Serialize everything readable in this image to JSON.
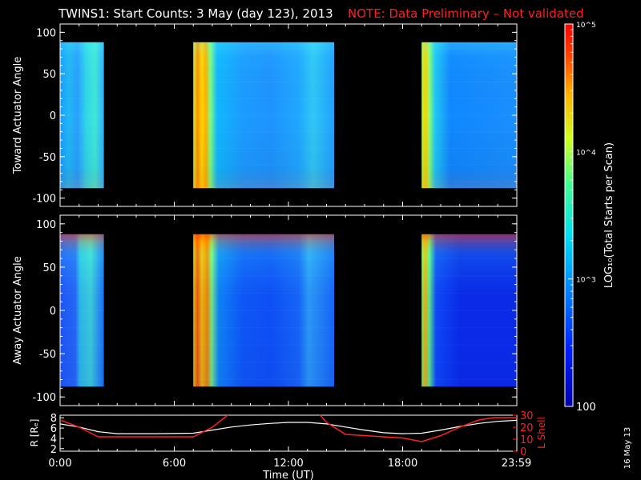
{
  "header": {
    "title": "TWINS1: Start Counts:  3 May (day 123), 2013",
    "note": "NOTE: Data Preliminary – Not validated"
  },
  "colors": {
    "background": "#000000",
    "axis": "#ffffff",
    "accent_red": "#ff2020"
  },
  "colorbar": {
    "label": "LOG₁₀(Total Starts per Scan)",
    "tick_labels": [
      "10^5",
      "10^4",
      "10^3",
      "100"
    ],
    "range": [
      100,
      100000
    ],
    "scale": "log"
  },
  "stamp": "16 May 13",
  "chart_data": [
    {
      "type": "heatmap",
      "panel": "toward",
      "ylabel": "Toward Actuator Angle",
      "ylim": [
        -110,
        110
      ],
      "y_ticks": [
        "100",
        "50",
        "0",
        "-50",
        "-100"
      ],
      "xlim_hours": [
        0,
        24
      ],
      "data_intervals_hours": [
        [
          0.0,
          2.3
        ],
        [
          7.0,
          14.4
        ],
        [
          19.0,
          24.0
        ]
      ],
      "angle_range": [
        -88,
        88
      ]
    },
    {
      "type": "heatmap",
      "panel": "away",
      "ylabel": "Away Actuator Angle",
      "ylim": [
        -110,
        110
      ],
      "y_ticks": [
        "100",
        "50",
        "0",
        "-50",
        "-100"
      ],
      "xlim_hours": [
        0,
        24
      ],
      "data_intervals_hours": [
        [
          0.0,
          2.3
        ],
        [
          7.0,
          14.4
        ],
        [
          19.0,
          24.0
        ]
      ],
      "angle_range": [
        -88,
        88
      ]
    },
    {
      "type": "line",
      "panel": "orbit",
      "ylabel_left": "R [Rₑ]",
      "ylabel_right": "L Shell",
      "y_left_ticks": [
        "8",
        "6",
        "4",
        "2"
      ],
      "y_right_ticks": [
        "30",
        "20",
        "10",
        "0"
      ],
      "ylim_left": [
        1.5,
        8.5
      ],
      "ylim_right": [
        0,
        30
      ],
      "xlabel": "Time (UT)",
      "x_tick_labels": [
        "0:00",
        "6:00",
        "12:00",
        "18:00",
        "23:59"
      ],
      "x_ticks_hours": [
        0,
        6,
        12,
        18,
        23.98
      ],
      "series": [
        {
          "color": "#ffffff",
          "x": [
            0,
            1,
            2,
            3,
            5,
            7,
            8,
            9,
            10,
            11,
            12,
            13,
            14,
            15,
            16,
            17,
            18,
            19,
            20,
            21,
            22,
            23,
            24
          ],
          "values": [
            6.8,
            6.2,
            5.3,
            4.9,
            4.9,
            5.0,
            5.6,
            6.2,
            6.6,
            6.9,
            7.1,
            7.1,
            6.8,
            6.2,
            5.6,
            5.1,
            4.9,
            5.0,
            5.6,
            6.3,
            6.9,
            7.3,
            7.5
          ]
        },
        {
          "color": "#ff2020",
          "x": [
            0,
            1,
            2,
            3,
            5,
            7,
            8,
            8.8,
            9.0,
            13.5,
            14.0,
            15,
            16,
            17,
            18,
            19,
            20,
            21,
            22,
            22.8,
            24
          ],
          "values": [
            26,
            20,
            12,
            12,
            12,
            12,
            20,
            30,
            33,
            33,
            24,
            14,
            13,
            12,
            11,
            8,
            13,
            20,
            26,
            28,
            28
          ]
        }
      ]
    }
  ]
}
